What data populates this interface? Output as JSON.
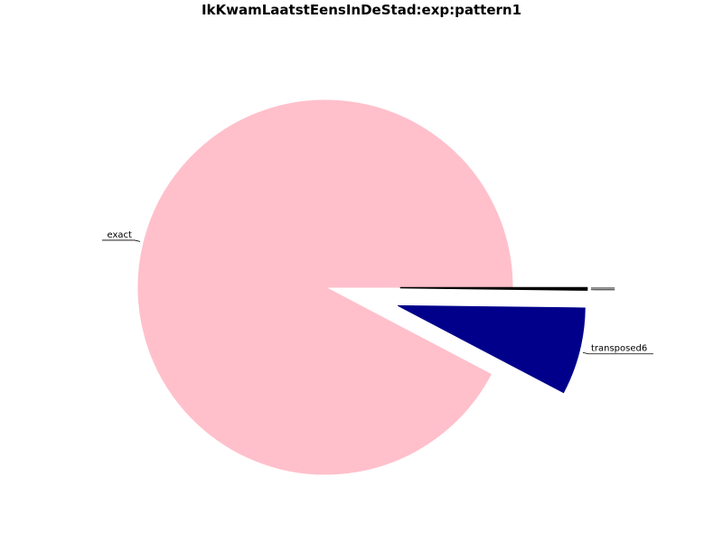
{
  "chart_data": {
    "type": "pie",
    "title": "IkKwamLaatstEensInDeStad:exp:pattern1",
    "slices": [
      {
        "label": "exact",
        "value": 92.3,
        "color": "#FFC0CB",
        "exploded": false
      },
      {
        "label": "transposed6",
        "value": 7.5,
        "color": "#00008B",
        "exploded": true
      },
      {
        "label": "",
        "value": 0.1,
        "color": "#000000",
        "exploded": true
      },
      {
        "label": "",
        "value": 0.1,
        "color": "#000000",
        "exploded": true
      }
    ],
    "start_angle_deg": 0,
    "direction": "counterclockwise",
    "legend": "none"
  }
}
